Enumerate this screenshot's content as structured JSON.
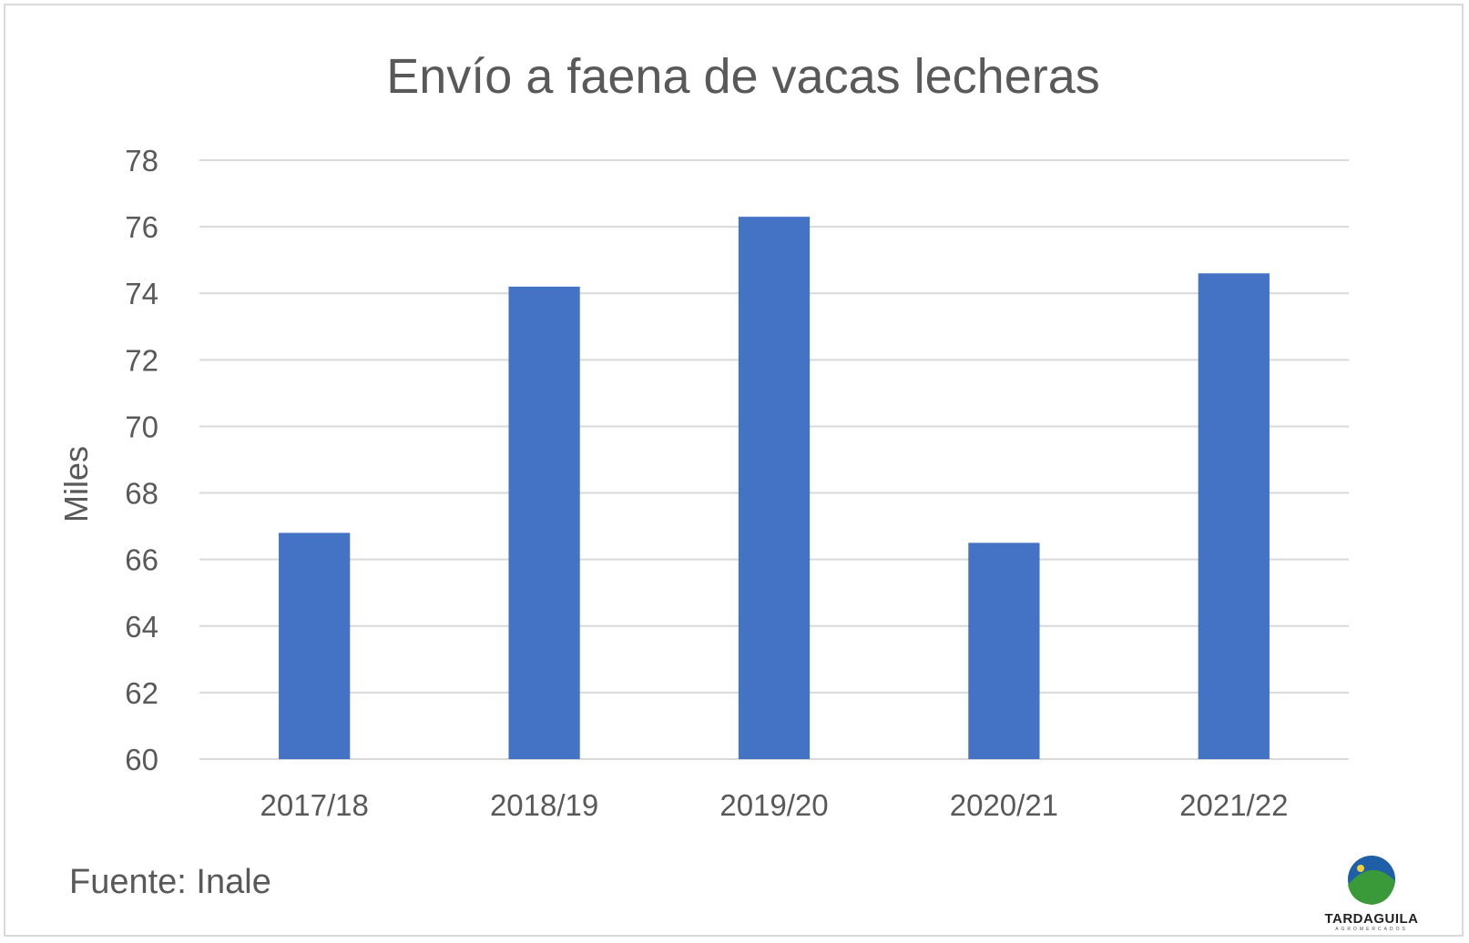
{
  "chart_data": {
    "type": "bar",
    "title": "Envío a faena de vacas lecheras",
    "ylabel": "Miles",
    "xlabel": "",
    "categories": [
      "2017/18",
      "2018/19",
      "2019/20",
      "2020/21",
      "2021/22"
    ],
    "values": [
      66.8,
      74.2,
      76.3,
      66.5,
      74.6
    ],
    "ylim": [
      60,
      78
    ],
    "yticks": [
      60,
      62,
      64,
      66,
      68,
      70,
      72,
      74,
      76,
      78
    ],
    "grid": true,
    "legend": "none",
    "bar_color": "#4472c4"
  },
  "footer": {
    "source": "Fuente: Inale",
    "logo_text": "TARDAGUILA",
    "logo_subtext": "AGROMERCADOS"
  }
}
